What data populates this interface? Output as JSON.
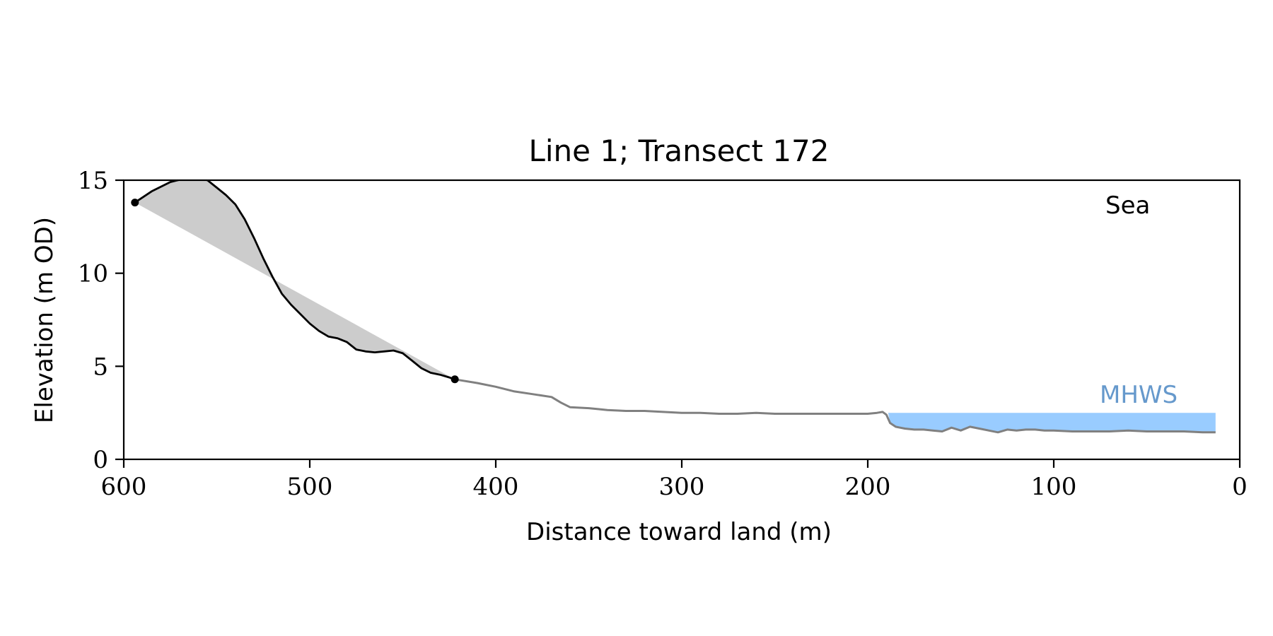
{
  "chart_data": {
    "type": "line",
    "title": "Line 1; Transect 172",
    "xlabel": "Distance toward land (m)",
    "ylabel": "Elevation (m OD)",
    "xlim": [
      600,
      0
    ],
    "ylim": [
      0,
      15
    ],
    "x_ticks": [
      "600",
      "500",
      "400",
      "300",
      "200",
      "100",
      "0"
    ],
    "y_ticks": [
      "0",
      "5",
      "10",
      "15"
    ],
    "grid": false,
    "annotations": [
      {
        "text": "Sea",
        "color": "#000000"
      },
      {
        "text": "MHWS",
        "color": "#6699cc"
      }
    ],
    "mhws": {
      "elevation": 2.5,
      "from_x": 189,
      "to_x": 13,
      "color": "#99ccff"
    },
    "cliff_points": [
      {
        "x": 594,
        "y": 13.8
      },
      {
        "x": 422,
        "y": 4.3
      }
    ],
    "series": [
      {
        "role": "cliff-profile",
        "color": "#000000",
        "x": [
          594,
          585,
          575,
          567,
          560,
          555,
          550,
          545,
          540,
          535,
          530,
          525,
          520,
          515,
          510,
          505,
          500,
          495,
          490,
          485,
          480,
          475,
          470,
          465,
          460,
          455,
          450,
          445,
          440,
          435,
          430,
          425,
          422
        ],
        "y": [
          13.8,
          14.4,
          14.9,
          15.1,
          15.1,
          15.0,
          14.6,
          14.2,
          13.7,
          12.9,
          11.9,
          10.8,
          9.8,
          8.9,
          8.3,
          7.8,
          7.3,
          6.9,
          6.6,
          6.5,
          6.3,
          5.9,
          5.8,
          5.75,
          5.8,
          5.85,
          5.7,
          5.3,
          4.9,
          4.65,
          4.55,
          4.4,
          4.3
        ]
      },
      {
        "role": "foreshore-profile",
        "color": "#808080",
        "x": [
          422,
          410,
          400,
          390,
          380,
          370,
          365,
          360,
          350,
          345,
          340,
          330,
          320,
          310,
          300,
          290,
          280,
          270,
          260,
          250,
          240,
          230,
          220,
          210,
          200,
          195,
          192,
          190,
          188,
          185,
          180,
          175,
          170,
          165,
          160,
          155,
          150,
          145,
          140,
          135,
          130,
          125,
          120,
          115,
          110,
          105,
          100,
          90,
          80,
          70,
          60,
          50,
          40,
          30,
          20,
          13
        ],
        "y": [
          4.3,
          4.1,
          3.9,
          3.65,
          3.5,
          3.35,
          3.05,
          2.8,
          2.75,
          2.7,
          2.65,
          2.6,
          2.6,
          2.55,
          2.5,
          2.5,
          2.45,
          2.45,
          2.5,
          2.45,
          2.45,
          2.45,
          2.45,
          2.45,
          2.45,
          2.5,
          2.55,
          2.4,
          1.95,
          1.75,
          1.65,
          1.6,
          1.6,
          1.55,
          1.5,
          1.7,
          1.55,
          1.75,
          1.65,
          1.55,
          1.45,
          1.6,
          1.55,
          1.6,
          1.6,
          1.55,
          1.55,
          1.5,
          1.5,
          1.5,
          1.55,
          1.5,
          1.5,
          1.5,
          1.45,
          1.45
        ]
      }
    ]
  }
}
